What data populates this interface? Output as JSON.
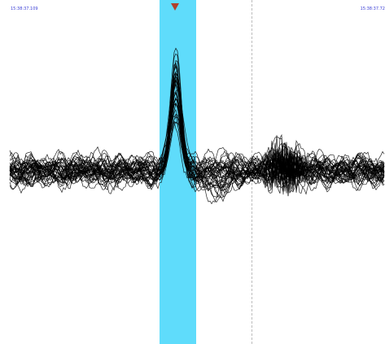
{
  "timestamps": {
    "left": "15:38:37.109",
    "right": "15:38:37.72"
  },
  "colors": {
    "highlight": "#5fdcfb",
    "marker": "#b0402a",
    "trace": "#000000",
    "timestamp": "#3b3fd6"
  },
  "icons": {
    "event_marker": "triangle-down-icon"
  },
  "trace_count": 40
}
